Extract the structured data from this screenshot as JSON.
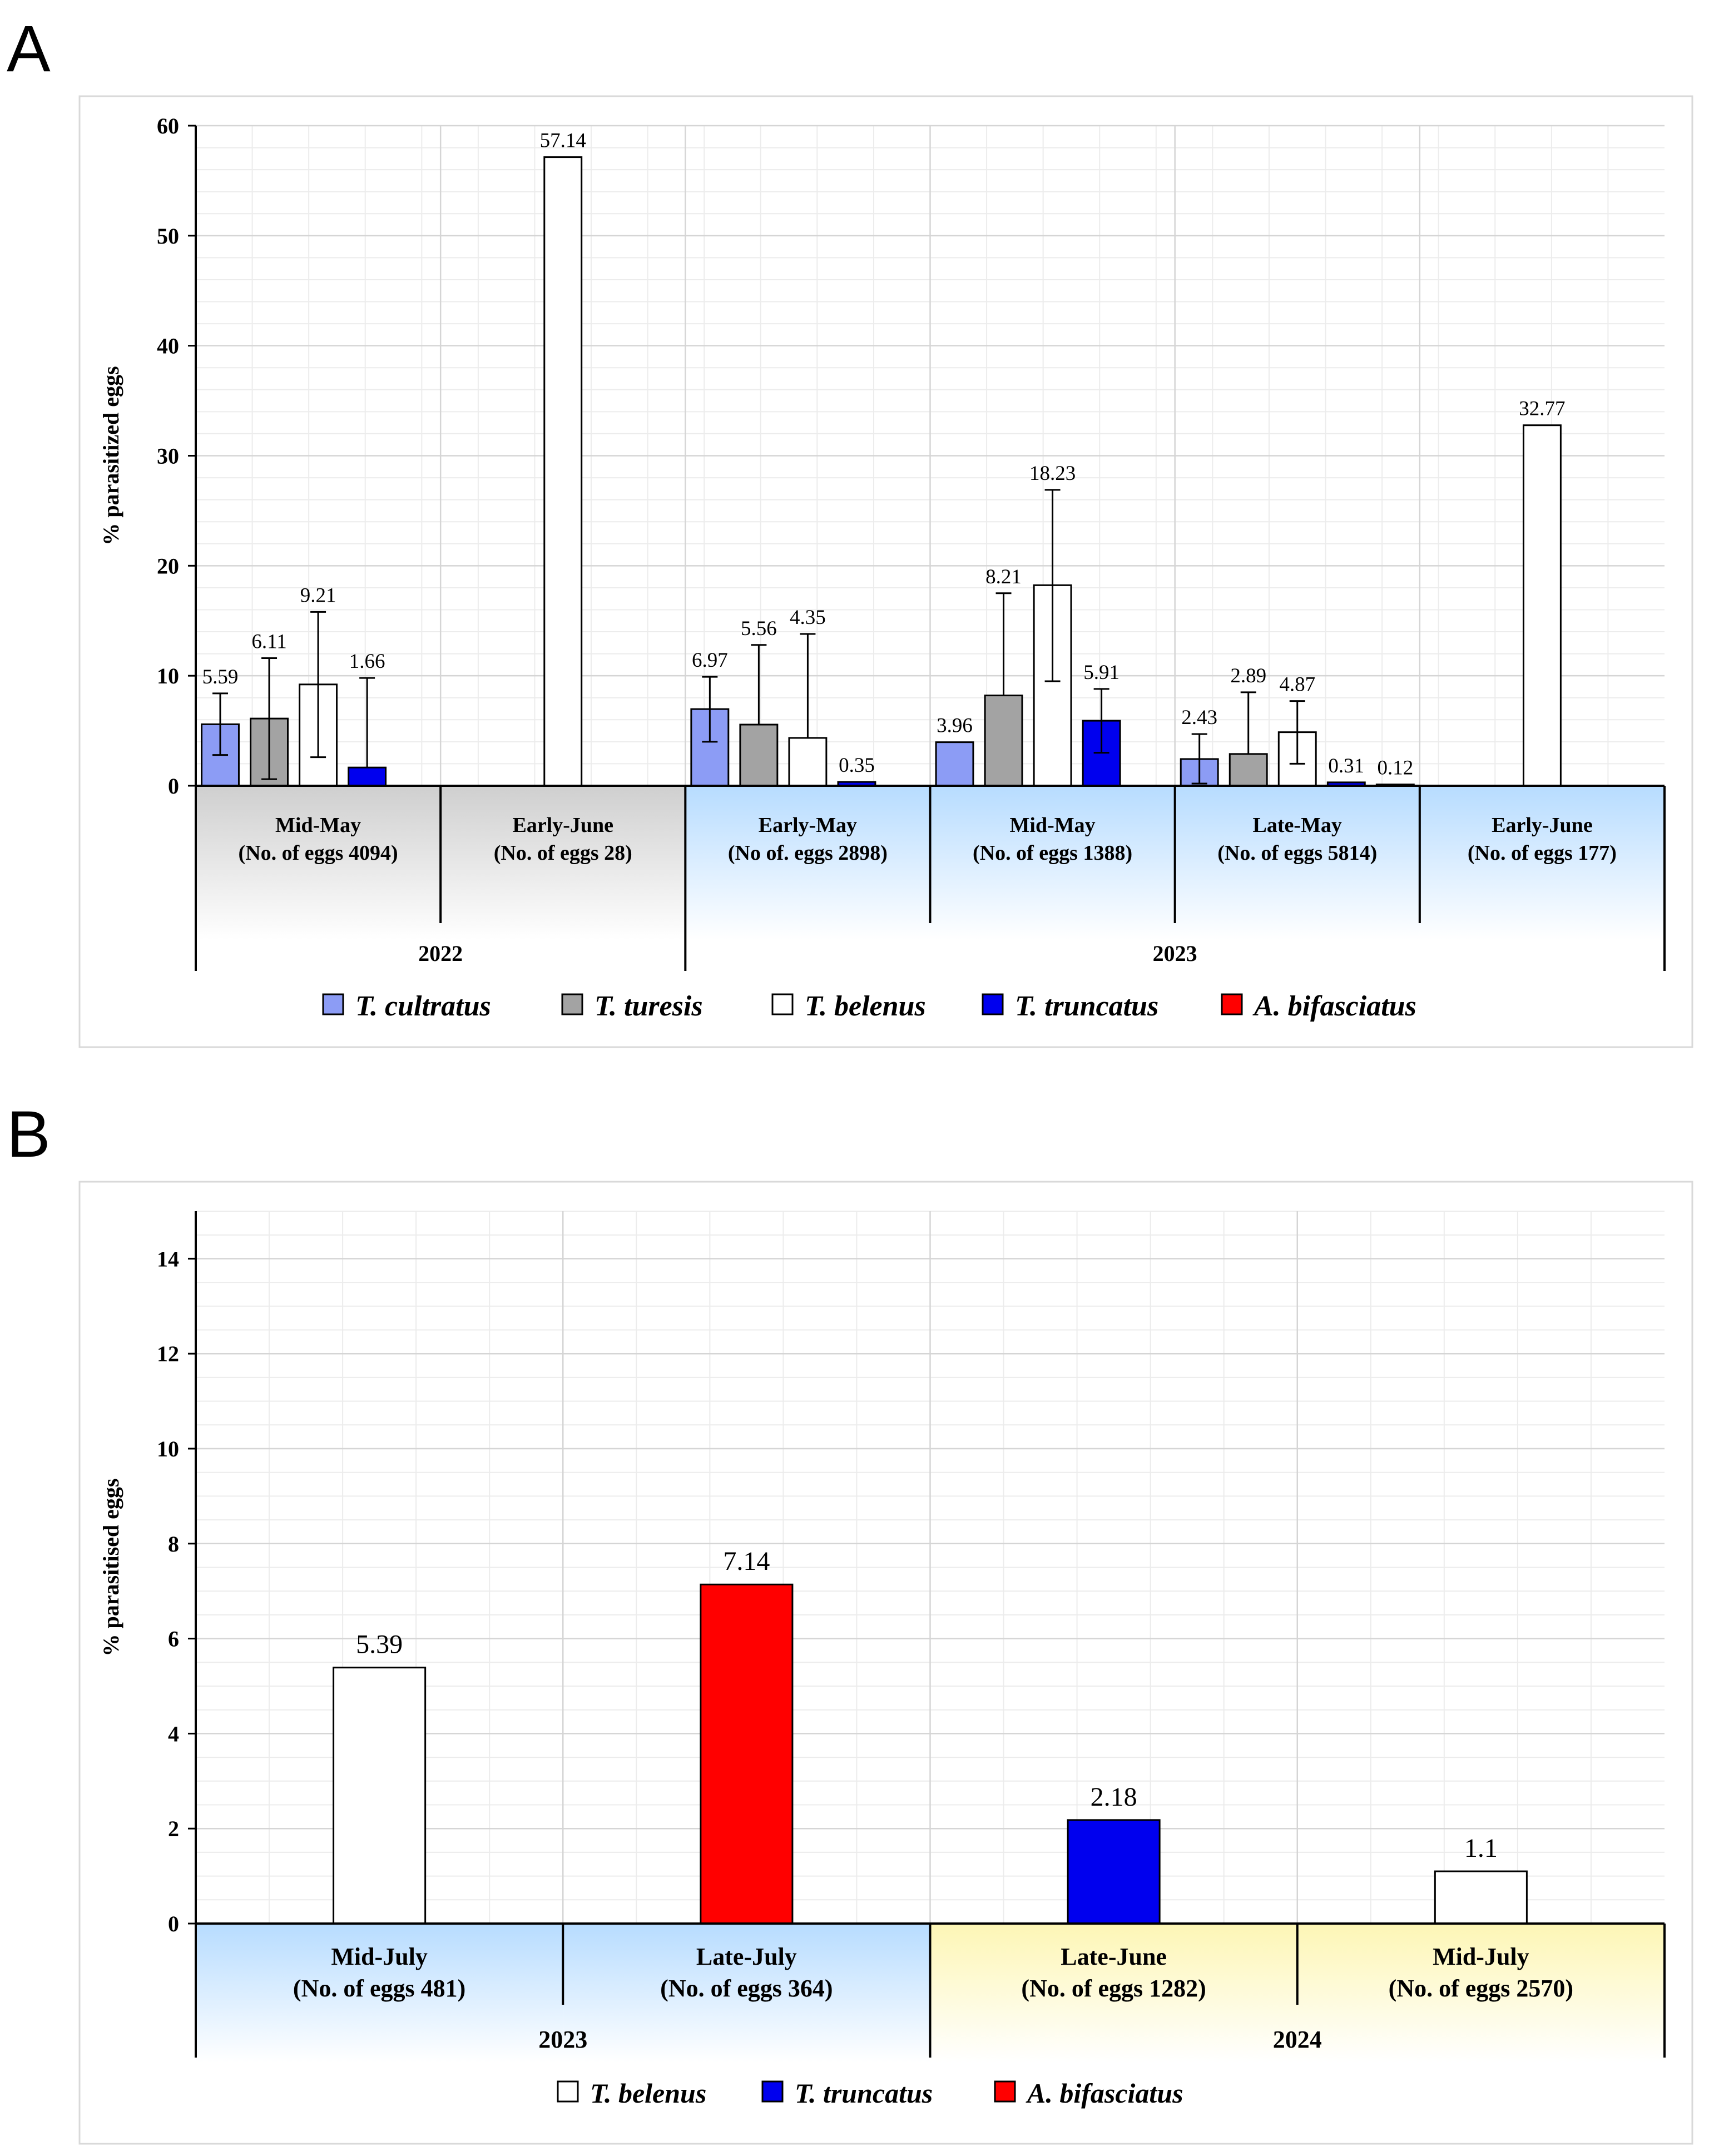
{
  "chart_data": [
    {
      "panel": "A",
      "type": "bar",
      "ylabel": "% parasitized eggs",
      "ylim": [
        0,
        60
      ],
      "yticks": [
        0,
        10,
        20,
        30,
        40,
        50,
        60
      ],
      "grid": true,
      "groups": [
        {
          "label": "Mid-May",
          "sublabel": "(No. of eggs 4094)",
          "year": "2022",
          "fill": "gray"
        },
        {
          "label": "Early-June",
          "sublabel": "(No. of eggs 28)",
          "year": "2022",
          "fill": "gray"
        },
        {
          "label": "Early-May",
          "sublabel": "(No of. eggs 2898)",
          "year": "2023",
          "fill": "blue"
        },
        {
          "label": "Mid-May",
          "sublabel": "(No. of eggs 1388)",
          "year": "2023",
          "fill": "blue"
        },
        {
          "label": "Late-May",
          "sublabel": "(No. of eggs 5814)",
          "year": "2023",
          "fill": "blue"
        },
        {
          "label": "Early-June",
          "sublabel": "(No. of eggs 177)",
          "year": "2023",
          "fill": "blue"
        }
      ],
      "years": [
        "2022",
        "2023"
      ],
      "series": [
        {
          "name": "T. cultratus",
          "color": "#8c9cf5",
          "values": [
            5.59,
            null,
            6.97,
            3.96,
            2.43,
            null
          ],
          "labels": [
            "5.59",
            null,
            "6.97",
            "3.96",
            "2.43",
            null
          ],
          "err_low": [
            2.8,
            null,
            4.0,
            null,
            0.2,
            null
          ],
          "err_high": [
            8.4,
            null,
            9.9,
            null,
            4.7,
            null
          ]
        },
        {
          "name": "T. turesis",
          "color": "#a3a3a3",
          "values": [
            6.11,
            null,
            5.56,
            8.21,
            2.89,
            null
          ],
          "labels": [
            "6.11",
            null,
            "5.56",
            "8.21",
            "2.89",
            null
          ],
          "err_low": [
            0.6,
            null,
            null,
            null,
            null,
            null
          ],
          "err_high": [
            11.6,
            null,
            12.8,
            17.5,
            8.5,
            null
          ]
        },
        {
          "name": "T. belenus",
          "color": "#ffffff",
          "values": [
            9.21,
            57.14,
            4.35,
            18.23,
            4.87,
            32.77
          ],
          "labels": [
            "9.21",
            "57.14",
            "4.35",
            "18.23",
            "4.87",
            "32.77"
          ],
          "err_low": [
            2.6,
            null,
            null,
            9.5,
            2.0,
            null
          ],
          "err_high": [
            15.8,
            null,
            13.8,
            26.9,
            7.7,
            null
          ]
        },
        {
          "name": "T. truncatus",
          "color": "#0000ee",
          "values": [
            1.66,
            null,
            0.35,
            5.91,
            0.31,
            null
          ],
          "labels": [
            "1.66",
            null,
            "0.35",
            "5.91",
            "0.31",
            null
          ],
          "err_low": [
            null,
            null,
            null,
            3.0,
            null,
            null
          ],
          "err_high": [
            9.8,
            null,
            null,
            8.8,
            null,
            null
          ]
        },
        {
          "name": "A. bifasciatus",
          "color": "#ff0000",
          "values": [
            null,
            null,
            null,
            null,
            0.12,
            null
          ],
          "labels": [
            null,
            null,
            null,
            null,
            "0.12",
            null
          ],
          "err_low": [
            null,
            null,
            null,
            null,
            null,
            null
          ],
          "err_high": [
            null,
            null,
            null,
            null,
            null,
            null
          ]
        }
      ],
      "legend": [
        "T. cultratus",
        "T. turesis",
        "T. belenus",
        "T. truncatus",
        "A. bifasciatus"
      ]
    },
    {
      "panel": "B",
      "type": "bar",
      "ylabel": "% parasitised eggs",
      "ylim": [
        0,
        15
      ],
      "yticks": [
        0,
        2,
        4,
        6,
        8,
        10,
        12,
        14
      ],
      "grid": true,
      "groups": [
        {
          "label": "Mid-July",
          "sublabel": "(No. of eggs 481)",
          "year": "2023",
          "fill": "blue"
        },
        {
          "label": "Late-July",
          "sublabel": "(No. of eggs 364)",
          "year": "2023",
          "fill": "blue"
        },
        {
          "label": "Late-June",
          "sublabel": "(No. of eggs 1282)",
          "year": "2024",
          "fill": "yellow"
        },
        {
          "label": "Mid-July",
          "sublabel": "(No. of eggs 2570)",
          "year": "2024",
          "fill": "yellow"
        }
      ],
      "years": [
        "2023",
        "2024"
      ],
      "bars": [
        {
          "series": "T. belenus",
          "color": "#ffffff",
          "value": 5.39,
          "label": "5.39"
        },
        {
          "series": "A. bifasciatus",
          "color": "#ff0000",
          "value": 7.14,
          "label": "7.14"
        },
        {
          "series": "T. truncatus",
          "color": "#0000ee",
          "value": 2.18,
          "label": "2.18"
        },
        {
          "series": "T. belenus",
          "color": "#ffffff",
          "value": 1.1,
          "label": "1.1"
        }
      ],
      "legend": [
        {
          "name": "T. belenus",
          "color": "#ffffff"
        },
        {
          "name": "T. truncatus",
          "color": "#0000ee"
        },
        {
          "name": "A. bifasciatus",
          "color": "#ff0000"
        }
      ]
    }
  ]
}
